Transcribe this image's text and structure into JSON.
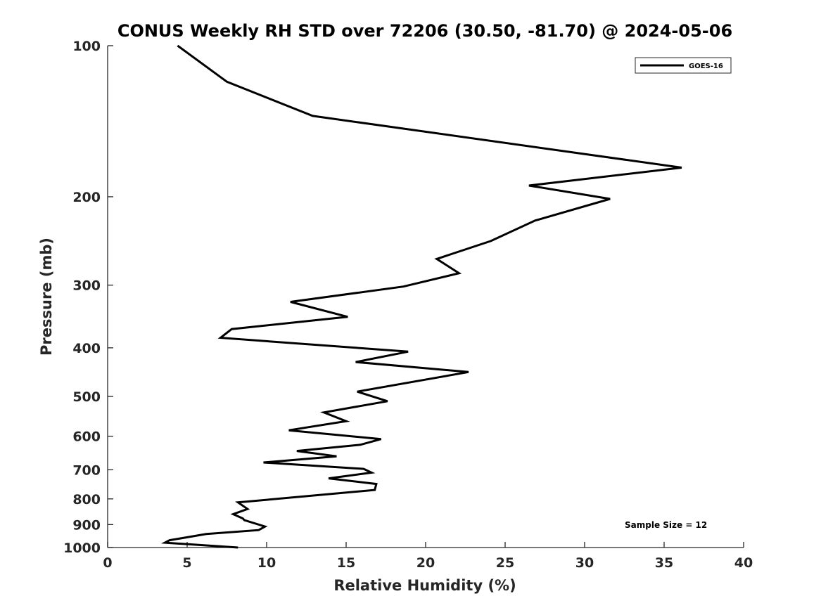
{
  "chart_data": {
    "type": "line",
    "title": "CONUS Weekly RH STD over 72206 (30.50, -81.70) @ 2024-05-06",
    "xlabel": "Relative Humidity (%)",
    "ylabel": "Pressure (mb)",
    "xlim": [
      0,
      40
    ],
    "ylim": [
      100,
      1000
    ],
    "y_scale": "log",
    "y_reversed": true,
    "xticks": [
      0,
      5,
      10,
      15,
      20,
      25,
      30,
      35,
      40
    ],
    "yticks": [
      100,
      200,
      300,
      400,
      500,
      600,
      700,
      800,
      900,
      1000
    ],
    "grid": false,
    "legend_position": "top-right",
    "series": [
      {
        "name": "GOES-16",
        "color": "#000000",
        "x": [
          4.4,
          7.5,
          12.9,
          36.1,
          26.5,
          31.6,
          26.9,
          24.1,
          20.7,
          22.1,
          18.6,
          11.5,
          15.1,
          7.8,
          7.1,
          18.9,
          15.6,
          22.7,
          15.7,
          17.6,
          13.6,
          15.0,
          11.4,
          17.2,
          15.9,
          11.9,
          14.4,
          9.8,
          16.1,
          16.6,
          13.9,
          16.9,
          16.8,
          8.2,
          8.8,
          7.9,
          8.5,
          8.6,
          9.9,
          9.5,
          6.2,
          3.9,
          3.6,
          8.2
        ],
        "y": [
          100,
          118,
          138,
          175,
          190,
          202,
          223,
          245,
          266,
          284,
          302,
          324,
          347,
          367,
          382,
          407,
          427,
          447,
          489,
          511,
          538,
          560,
          584,
          608,
          624,
          642,
          658,
          677,
          697,
          709,
          728,
          747,
          768,
          813,
          838,
          858,
          875,
          882,
          908,
          923,
          940,
          967,
          978,
          1000
        ]
      }
    ],
    "annotation": "Sample Size = 12"
  }
}
